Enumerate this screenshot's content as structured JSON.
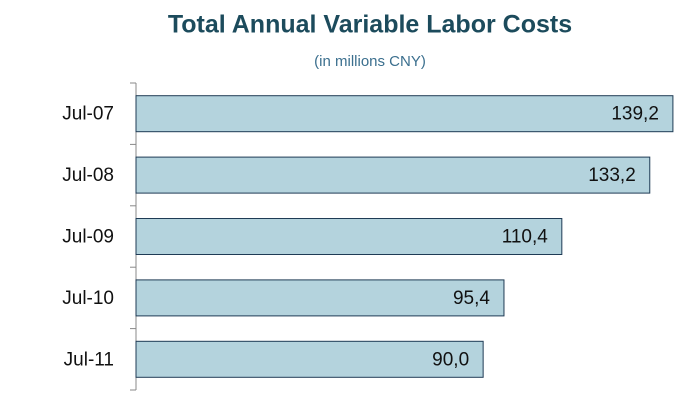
{
  "chart_data": {
    "type": "bar",
    "orientation": "horizontal",
    "title": "Total Annual Variable Labor Costs",
    "subtitle": "(in millions CNY)",
    "categories": [
      "Jul-07",
      "Jul-08",
      "Jul-09",
      "Jul-10",
      "Jul-11"
    ],
    "values": [
      139.2,
      133.2,
      110.4,
      95.4,
      90.0
    ],
    "value_labels": [
      "139,2",
      "133,2",
      "110,4",
      "95,4",
      "90,0"
    ],
    "color": "#b4d3dd",
    "xlim": [
      0,
      140
    ]
  }
}
